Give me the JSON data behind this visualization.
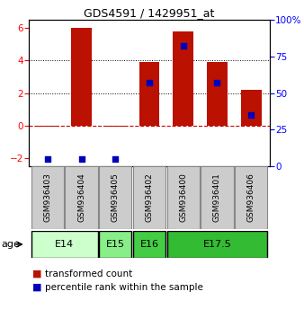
{
  "title": "GDS4591 / 1429951_at",
  "samples": [
    "GSM936403",
    "GSM936404",
    "GSM936405",
    "GSM936402",
    "GSM936400",
    "GSM936401",
    "GSM936406"
  ],
  "red_values": [
    -0.08,
    6.0,
    -0.08,
    3.9,
    5.8,
    3.9,
    2.2
  ],
  "blue_pct": [
    5,
    5,
    5,
    57,
    82,
    57,
    35
  ],
  "ylim_left": [
    -2.5,
    6.5
  ],
  "ylim_right": [
    0,
    100
  ],
  "yticks_left": [
    -2,
    0,
    2,
    4,
    6
  ],
  "yticks_right": [
    0,
    25,
    50,
    75,
    100
  ],
  "age_groups": [
    {
      "label": "E14",
      "start": 0,
      "end": 1,
      "color": "#ccffcc"
    },
    {
      "label": "E15",
      "start": 2,
      "end": 2,
      "color": "#88ee88"
    },
    {
      "label": "E16",
      "start": 3,
      "end": 3,
      "color": "#44cc44"
    },
    {
      "label": "E17.5",
      "start": 4,
      "end": 6,
      "color": "#33bb33"
    }
  ],
  "bar_color": "#bb1100",
  "dot_color": "#0000bb",
  "zero_line_color": "#cc0000",
  "bar_width": 0.6,
  "legend_red": "transformed count",
  "legend_blue": "percentile rank within the sample",
  "sample_bg": "#cccccc",
  "sample_border": "#888888"
}
